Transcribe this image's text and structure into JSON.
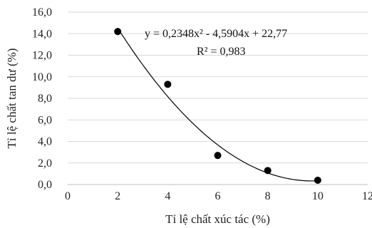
{
  "chart_data": {
    "type": "scatter",
    "title": "",
    "xlabel": "Tỉ lệ chất xúc tác (%)",
    "ylabel": "Tỉ lệ chất tan dư (%)",
    "xlim": [
      0,
      12
    ],
    "ylim": [
      0,
      16
    ],
    "x_ticks": [
      "0",
      "2",
      "4",
      "6",
      "8",
      "10",
      "12"
    ],
    "y_ticks": [
      "0,0",
      "2,0",
      "4,0",
      "6,0",
      "8,0",
      "10,0",
      "12,0",
      "14,0",
      "16,0"
    ],
    "grid": "horizontal",
    "legend": "none",
    "series": [
      {
        "points": [
          {
            "x": 2,
            "y": 14.2
          },
          {
            "x": 4,
            "y": 9.3
          },
          {
            "x": 6,
            "y": 2.7
          },
          {
            "x": 8,
            "y": 1.3
          },
          {
            "x": 10,
            "y": 0.4
          }
        ]
      }
    ],
    "trendline": {
      "kind": "polynomial",
      "order": 2,
      "coefficients": [
        0.2348,
        -4.5904,
        22.77
      ],
      "x_range": [
        2,
        10
      ]
    },
    "annotations": {
      "equation": "y = 0,2348x² - 4,5904x + 22,77",
      "r_squared": "R² = 0,983"
    },
    "colors": {
      "marker": "#000000",
      "trendline": "#000000",
      "grid": "#d9d9d9",
      "axis": "#bfbfbf"
    }
  }
}
